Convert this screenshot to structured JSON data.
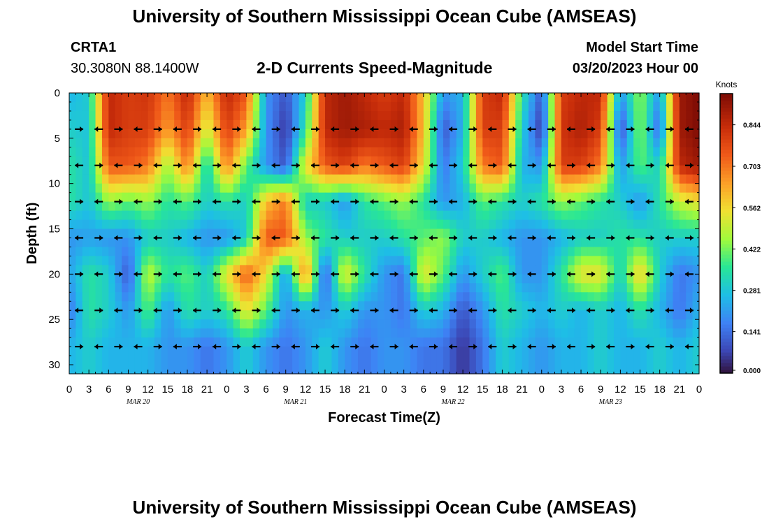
{
  "header": {
    "title_top": "University of Southern Mississippi Ocean Cube (AMSEAS)",
    "title_bottom": "University of Southern Mississippi Ocean Cube (AMSEAS)",
    "station": "CRTA1",
    "location": "30.3080N  88.1400W",
    "chart_title": "2-D Currents Speed-Magnitude",
    "model_label": "Model Start Time",
    "model_time": "03/20/2023 Hour 00"
  },
  "chart_data": {
    "type": "heatmap",
    "title": "2-D Currents Speed-Magnitude",
    "xlabel": "Forecast Time(Z)",
    "ylabel": "Depth (ft)",
    "colorbar_label": "Knots",
    "colorbar_ticks": [
      "0.844",
      "0.703",
      "0.562",
      "0.422",
      "0.281",
      "0.141",
      "0.000"
    ],
    "colorbar_values": [
      0.844,
      0.703,
      0.562,
      0.422,
      0.281,
      0.141,
      0.0
    ],
    "vmin": 0.0,
    "vmax": 0.95,
    "x_range": [
      0,
      96
    ],
    "y_range": [
      0,
      31
    ],
    "x_tick_labels": [
      "0",
      "3",
      "6",
      "9",
      "12",
      "15",
      "18",
      "21",
      "0",
      "3",
      "6",
      "9",
      "12",
      "15",
      "18",
      "21",
      "0",
      "3",
      "6",
      "9",
      "12",
      "15",
      "18",
      "21",
      "0",
      "3",
      "6",
      "9",
      "12",
      "15",
      "18",
      "21",
      "0"
    ],
    "y_tick_labels": [
      "0",
      "5",
      "10",
      "15",
      "20",
      "25",
      "30"
    ],
    "y_tick_values": [
      0,
      5,
      10,
      15,
      20,
      25,
      30
    ],
    "day_labels": [
      "MAR 20",
      "MAR 21",
      "MAR 22",
      "MAR 23"
    ],
    "depth_levels": [
      0,
      4,
      8,
      12,
      16,
      20,
      24,
      28
    ],
    "time_hours": [
      0,
      3,
      6,
      9,
      12,
      15,
      18,
      21,
      24,
      27,
      30,
      33,
      36,
      39,
      42,
      45,
      48,
      51,
      54,
      57,
      60,
      63,
      66,
      69,
      72,
      75,
      78,
      81,
      84,
      87,
      90,
      93,
      96
    ],
    "speed": [
      [
        0.25,
        0.3,
        0.85,
        0.8,
        0.82,
        0.7,
        0.85,
        0.6,
        0.85,
        0.75,
        0.2,
        0.1,
        0.3,
        0.85,
        0.9,
        0.85,
        0.8,
        0.85,
        0.6,
        0.2,
        0.25,
        0.8,
        0.85,
        0.35,
        0.1,
        0.8,
        0.85,
        0.85,
        0.2,
        0.45,
        0.2,
        0.9,
        0.95
      ],
      [
        0.3,
        0.28,
        0.85,
        0.8,
        0.8,
        0.65,
        0.8,
        0.5,
        0.8,
        0.65,
        0.2,
        0.05,
        0.35,
        0.85,
        0.9,
        0.88,
        0.85,
        0.88,
        0.6,
        0.1,
        0.25,
        0.8,
        0.8,
        0.3,
        0.05,
        0.82,
        0.88,
        0.8,
        0.08,
        0.45,
        0.12,
        0.9,
        0.95
      ],
      [
        0.35,
        0.28,
        0.75,
        0.75,
        0.7,
        0.45,
        0.7,
        0.3,
        0.7,
        0.4,
        0.2,
        0.1,
        0.55,
        0.75,
        0.8,
        0.7,
        0.75,
        0.8,
        0.55,
        0.15,
        0.3,
        0.7,
        0.75,
        0.25,
        0.2,
        0.8,
        0.8,
        0.7,
        0.2,
        0.4,
        0.3,
        0.85,
        0.9
      ],
      [
        0.35,
        0.28,
        0.45,
        0.4,
        0.45,
        0.35,
        0.4,
        0.3,
        0.35,
        0.3,
        0.6,
        0.7,
        0.3,
        0.3,
        0.2,
        0.35,
        0.4,
        0.45,
        0.35,
        0.2,
        0.25,
        0.4,
        0.35,
        0.3,
        0.35,
        0.45,
        0.4,
        0.35,
        0.3,
        0.2,
        0.35,
        0.5,
        0.55
      ],
      [
        0.2,
        0.22,
        0.2,
        0.2,
        0.3,
        0.3,
        0.25,
        0.2,
        0.2,
        0.3,
        0.75,
        0.75,
        0.45,
        0.35,
        0.3,
        0.3,
        0.3,
        0.35,
        0.4,
        0.45,
        0.3,
        0.3,
        0.25,
        0.2,
        0.2,
        0.25,
        0.3,
        0.3,
        0.35,
        0.35,
        0.3,
        0.3,
        0.3
      ],
      [
        0.22,
        0.35,
        0.3,
        0.1,
        0.5,
        0.35,
        0.4,
        0.3,
        0.55,
        0.75,
        0.55,
        0.2,
        0.7,
        0.1,
        0.55,
        0.35,
        0.2,
        0.15,
        0.55,
        0.4,
        0.2,
        0.3,
        0.4,
        0.2,
        0.2,
        0.35,
        0.55,
        0.55,
        0.3,
        0.6,
        0.3,
        0.15,
        0.2
      ],
      [
        0.15,
        0.35,
        0.3,
        0.2,
        0.4,
        0.2,
        0.35,
        0.3,
        0.35,
        0.55,
        0.4,
        0.2,
        0.25,
        0.2,
        0.3,
        0.2,
        0.2,
        0.15,
        0.3,
        0.25,
        0.1,
        0.2,
        0.35,
        0.3,
        0.25,
        0.3,
        0.25,
        0.3,
        0.25,
        0.35,
        0.25,
        0.15,
        0.25
      ],
      [
        0.25,
        0.3,
        0.25,
        0.25,
        0.25,
        0.2,
        0.2,
        0.15,
        0.2,
        0.3,
        0.2,
        0.15,
        0.2,
        0.3,
        0.2,
        0.15,
        0.2,
        0.2,
        0.15,
        0.15,
        0.05,
        0.15,
        0.3,
        0.25,
        0.2,
        0.25,
        0.25,
        0.3,
        0.25,
        0.25,
        0.3,
        0.25,
        0.3
      ]
    ]
  }
}
